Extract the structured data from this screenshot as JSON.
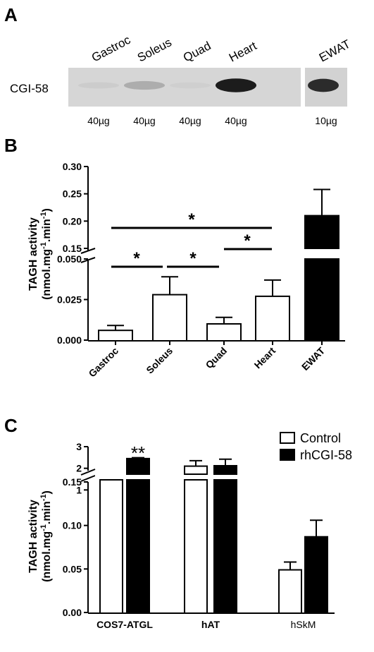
{
  "panel_a": {
    "label": "A",
    "protein_label": "CGI-58",
    "lanes": [
      "Gastroc",
      "Soleus",
      "Quad",
      "Heart",
      "EWAT"
    ],
    "loads": [
      "40µg",
      "40µg",
      "40µg",
      "40µg",
      "10µg"
    ],
    "band_intensity": [
      0.08,
      0.35,
      0.05,
      0.95,
      0.9
    ]
  },
  "chart_data": [
    {
      "panel": "B",
      "type": "bar",
      "categories": [
        "Gastroc",
        "Soleus",
        "Quad",
        "Heart",
        "EWAT"
      ],
      "values": [
        0.006,
        0.028,
        0.01,
        0.027,
        0.21
      ],
      "errors": [
        0.003,
        0.011,
        0.004,
        0.01,
        0.048
      ],
      "fill": [
        "#ffffff",
        "#ffffff",
        "#ffffff",
        "#ffffff",
        "#000000"
      ],
      "ylabel_line1": "TAGH activity",
      "ylabel_line2": "(nmol.mg",
      "ylabel_sup1": "-1",
      "ylabel_mid": ".min",
      "ylabel_sup2": "-1",
      "ylabel_end": ")",
      "ylim_lower": [
        0,
        0.05
      ],
      "ylim_upper": [
        0.15,
        0.3
      ],
      "yticks_lower": [
        "0.000",
        "0.025",
        "0.050"
      ],
      "yticks_upper": [
        "0.15",
        "0.20",
        "0.25",
        "0.30"
      ],
      "significance": [
        {
          "from": "Gastroc",
          "to": "Heart",
          "label": "*"
        },
        {
          "from": "Gastroc",
          "to": "Soleus",
          "label": "*"
        },
        {
          "from": "Soleus",
          "to": "Quad",
          "label": "*"
        },
        {
          "from": "Quad",
          "to": "Heart",
          "label": "*"
        }
      ]
    },
    {
      "panel": "C",
      "type": "bar",
      "categories": [
        "COS7-ATGL",
        "hAT",
        "hSkM"
      ],
      "series": [
        {
          "name": "Control",
          "color": "#ffffff",
          "values": [
            0.4,
            2.1,
            0.049
          ],
          "errors": [
            0.22,
            0.25,
            0.009
          ]
        },
        {
          "name": "rhCGI-58",
          "color": "#000000",
          "values": [
            2.45,
            2.12,
            0.087
          ],
          "errors": [
            0.04,
            0.3,
            0.019
          ]
        }
      ],
      "significance": [
        {
          "category": "COS7-ATGL",
          "series": "rhCGI-58",
          "label": "**"
        },
        {
          "category": "hSkM",
          "series": "rhCGI-58",
          "label": "**"
        }
      ],
      "ylabel_line1": "TAGH activity",
      "ylabel_line2": "(nmol.mg",
      "ylabel_sup1": "-1",
      "ylabel_mid": ".min",
      "ylabel_sup2": "-1",
      "ylabel_end": ")",
      "ylim_lower": [
        0,
        0.15
      ],
      "ylim_upper": [
        0,
        3
      ],
      "yticks_lower": [
        "0.00",
        "0.05",
        "0.10",
        "0.15"
      ],
      "yticks_upper": [
        "1",
        "2",
        "3"
      ],
      "legend": "top-right"
    }
  ],
  "labels": {
    "panel_b": "B",
    "panel_c": "C"
  }
}
